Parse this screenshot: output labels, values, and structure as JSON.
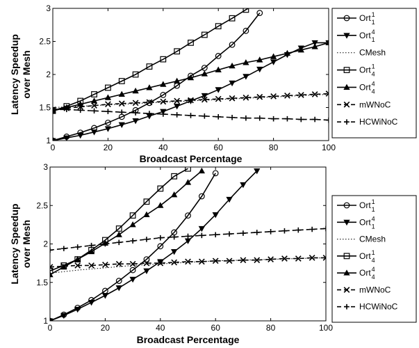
{
  "chart_data": [
    {
      "type": "line",
      "xlabel": "Broadcast Percentage",
      "ylabel": [
        "Latency Speedup",
        "over Mesh"
      ],
      "xlim": [
        0,
        100
      ],
      "ylim": [
        1,
        3
      ],
      "xticks": [
        0,
        20,
        40,
        60,
        80,
        100
      ],
      "yticks": [
        1,
        1.5,
        2,
        2.5,
        3
      ],
      "grid": false,
      "legend_position": "right",
      "series": [
        {
          "name": "Ort",
          "sup": "1",
          "sub": "1",
          "marker": "circle",
          "dash": "solid",
          "x": [
            0,
            5,
            10,
            15,
            20,
            25,
            30,
            35,
            40,
            45,
            50,
            55,
            60,
            65,
            70,
            75
          ],
          "y": [
            1.0,
            1.06,
            1.12,
            1.19,
            1.27,
            1.36,
            1.46,
            1.57,
            1.69,
            1.83,
            1.98,
            2.1,
            2.28,
            2.45,
            2.66,
            2.93
          ]
        },
        {
          "name": "Ort",
          "sup": "4",
          "sub": "1",
          "marker": "triangle-down",
          "dash": "solid",
          "x": [
            0,
            5,
            10,
            15,
            20,
            25,
            30,
            35,
            40,
            45,
            50,
            55,
            60,
            65,
            70,
            75,
            80,
            85,
            90,
            95,
            100
          ],
          "y": [
            1.0,
            1.04,
            1.08,
            1.13,
            1.18,
            1.24,
            1.3,
            1.37,
            1.44,
            1.52,
            1.6,
            1.68,
            1.77,
            1.87,
            1.97,
            2.08,
            2.19,
            2.3,
            2.4,
            2.48,
            2.48
          ]
        },
        {
          "name": "CMesh",
          "marker": "none",
          "dash": "dotted",
          "x": [
            0,
            10,
            20,
            30,
            40,
            50,
            60,
            70,
            80,
            90,
            100
          ],
          "y": [
            1.5,
            1.52,
            1.54,
            1.56,
            1.58,
            1.6,
            1.62,
            1.64,
            1.66,
            1.68,
            1.7
          ]
        },
        {
          "name": "Ort",
          "sup": "1",
          "sub": "4",
          "marker": "square",
          "dash": "solid",
          "x": [
            0,
            5,
            10,
            15,
            20,
            25,
            30,
            35,
            40,
            45,
            50,
            55,
            60,
            65,
            70,
            75
          ],
          "y": [
            1.45,
            1.52,
            1.6,
            1.7,
            1.8,
            1.9,
            2.0,
            2.12,
            2.23,
            2.35,
            2.48,
            2.6,
            2.73,
            2.85,
            2.98,
            3.1
          ]
        },
        {
          "name": "Ort",
          "sup": "4",
          "sub": "4",
          "marker": "triangle-up",
          "dash": "solid",
          "x": [
            0,
            5,
            10,
            15,
            20,
            25,
            30,
            35,
            40,
            45,
            50,
            55,
            60,
            65,
            70,
            75,
            80,
            85,
            90,
            95,
            100
          ],
          "y": [
            1.45,
            1.5,
            1.55,
            1.6,
            1.65,
            1.7,
            1.75,
            1.8,
            1.85,
            1.9,
            1.95,
            2.01,
            2.07,
            2.13,
            2.18,
            2.22,
            2.27,
            2.32,
            2.37,
            2.42,
            2.48
          ]
        },
        {
          "name": "mWNoC",
          "marker": "x",
          "dash": "dashed",
          "x": [
            0,
            5,
            10,
            15,
            20,
            25,
            30,
            35,
            40,
            45,
            50,
            55,
            60,
            65,
            70,
            75,
            80,
            85,
            90,
            95,
            100
          ],
          "y": [
            1.47,
            1.49,
            1.51,
            1.53,
            1.55,
            1.56,
            1.57,
            1.58,
            1.59,
            1.6,
            1.61,
            1.62,
            1.63,
            1.64,
            1.65,
            1.66,
            1.67,
            1.68,
            1.69,
            1.7,
            1.71
          ]
        },
        {
          "name": "HCWiNoC",
          "marker": "plus",
          "dash": "dashed",
          "x": [
            0,
            5,
            10,
            15,
            20,
            25,
            30,
            35,
            40,
            45,
            50,
            55,
            60,
            65,
            70,
            75,
            80,
            85,
            90,
            95,
            100
          ],
          "y": [
            1.47,
            1.47,
            1.46,
            1.45,
            1.44,
            1.43,
            1.42,
            1.41,
            1.4,
            1.39,
            1.38,
            1.37,
            1.36,
            1.35,
            1.34,
            1.34,
            1.33,
            1.33,
            1.32,
            1.32,
            1.31
          ]
        }
      ]
    },
    {
      "type": "line",
      "xlabel": "Broadcast Percentage",
      "ylabel": [
        "Latency Speedup",
        "over Mesh"
      ],
      "xlim": [
        0,
        100
      ],
      "ylim": [
        1,
        3
      ],
      "xticks": [
        0,
        20,
        40,
        60,
        80,
        100
      ],
      "yticks": [
        1,
        1.5,
        2,
        2.5,
        3
      ],
      "grid": false,
      "legend_position": "right",
      "series": [
        {
          "name": "Ort",
          "sup": "1",
          "sub": "1",
          "marker": "circle",
          "dash": "solid",
          "x": [
            0,
            5,
            10,
            15,
            20,
            25,
            30,
            35,
            40,
            45,
            50,
            55,
            60
          ],
          "y": [
            1.0,
            1.08,
            1.17,
            1.27,
            1.39,
            1.52,
            1.66,
            1.8,
            1.97,
            2.15,
            2.37,
            2.62,
            2.92
          ]
        },
        {
          "name": "Ort",
          "sup": "4",
          "sub": "1",
          "marker": "triangle-down",
          "dash": "solid",
          "x": [
            0,
            5,
            10,
            15,
            20,
            25,
            30,
            35,
            40,
            45,
            50,
            55,
            60,
            65,
            70,
            75
          ],
          "y": [
            1.0,
            1.07,
            1.15,
            1.24,
            1.33,
            1.43,
            1.54,
            1.65,
            1.77,
            1.9,
            2.04,
            2.2,
            2.38,
            2.58,
            2.77,
            2.95
          ]
        },
        {
          "name": "CMesh",
          "marker": "none",
          "dash": "dotted",
          "x": [
            0,
            10,
            20,
            30,
            40,
            50,
            60,
            70,
            80,
            90,
            100
          ],
          "y": [
            1.62,
            1.66,
            1.69,
            1.72,
            1.74,
            1.76,
            1.78,
            1.79,
            1.8,
            1.81,
            1.82
          ]
        },
        {
          "name": "Ort",
          "sup": "1",
          "sub": "4",
          "marker": "square",
          "dash": "solid",
          "x": [
            0,
            5,
            10,
            15,
            20,
            25,
            30,
            35,
            40,
            45,
            50
          ],
          "y": [
            1.65,
            1.72,
            1.8,
            1.92,
            2.05,
            2.2,
            2.37,
            2.55,
            2.72,
            2.88,
            2.98
          ]
        },
        {
          "name": "Ort",
          "sup": "4",
          "sub": "4",
          "marker": "triangle-up",
          "dash": "solid",
          "x": [
            0,
            5,
            10,
            15,
            20,
            25,
            30,
            35,
            40,
            45,
            50,
            55
          ],
          "y": [
            1.6,
            1.7,
            1.8,
            1.9,
            2.01,
            2.12,
            2.25,
            2.38,
            2.5,
            2.64,
            2.8,
            2.95
          ]
        },
        {
          "name": "mWNoC",
          "marker": "x",
          "dash": "dashed",
          "x": [
            0,
            5,
            10,
            15,
            20,
            25,
            30,
            35,
            40,
            45,
            50,
            55,
            60,
            65,
            70,
            75,
            80,
            85,
            90,
            95,
            100
          ],
          "y": [
            1.7,
            1.71,
            1.72,
            1.72,
            1.73,
            1.74,
            1.74,
            1.75,
            1.75,
            1.76,
            1.77,
            1.77,
            1.78,
            1.78,
            1.79,
            1.79,
            1.8,
            1.81,
            1.81,
            1.82,
            1.82
          ]
        },
        {
          "name": "HCWiNoC",
          "marker": "plus",
          "dash": "dashed",
          "x": [
            0,
            5,
            10,
            15,
            20,
            25,
            30,
            35,
            40,
            45,
            50,
            55,
            60,
            65,
            70,
            75,
            80,
            85,
            90,
            95,
            100
          ],
          "y": [
            1.92,
            1.94,
            1.96,
            1.98,
            2.0,
            2.02,
            2.04,
            2.06,
            2.08,
            2.09,
            2.1,
            2.11,
            2.12,
            2.13,
            2.14,
            2.15,
            2.16,
            2.17,
            2.18,
            2.19,
            2.2
          ]
        }
      ]
    }
  ]
}
